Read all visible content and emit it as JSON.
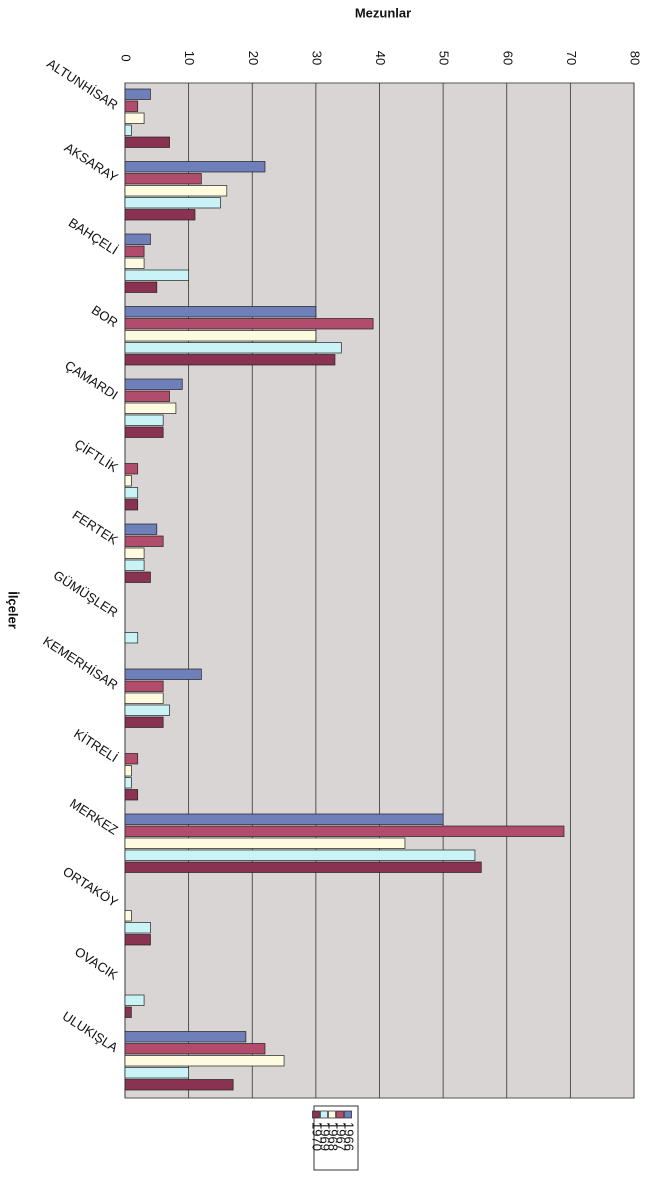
{
  "chart_data": {
    "type": "bar",
    "orientation": "horizontal",
    "title": "Mezunlar",
    "y_label": "İlçeler",
    "categories": [
      "ALTUNHİSAR",
      "AKSARAY",
      "BAHÇELİ",
      "BOR",
      "ÇAMARDI",
      "ÇİFTLİK",
      "FERTEK",
      "GÜMÜŞLER",
      "KEMERHİSAR",
      "KİTRELİ",
      "MERKEZ",
      "ORTAKÖY",
      "OVACIK",
      "ULUKIŞLA"
    ],
    "series": [
      {
        "name": "1966",
        "color": "#6f7fb9",
        "values": [
          4,
          22,
          4,
          30,
          9,
          0,
          5,
          0,
          12,
          0,
          50,
          0,
          0,
          19
        ]
      },
      {
        "name": "1967",
        "color": "#b24c6c",
        "values": [
          2,
          12,
          3,
          39,
          7,
          2,
          6,
          0,
          6,
          2,
          69,
          0,
          0,
          22
        ]
      },
      {
        "name": "1968",
        "color": "#fffbe0",
        "values": [
          3,
          16,
          3,
          30,
          8,
          1,
          3,
          0,
          6,
          1,
          44,
          1,
          0,
          25
        ]
      },
      {
        "name": "1969",
        "color": "#c9f3f6",
        "values": [
          1,
          15,
          10,
          34,
          6,
          2,
          3,
          2,
          7,
          1,
          55,
          4,
          3,
          10
        ]
      },
      {
        "name": "1970",
        "color": "#8a3252",
        "values": [
          7,
          11,
          5,
          33,
          6,
          2,
          4,
          0,
          6,
          2,
          56,
          4,
          1,
          17
        ]
      }
    ],
    "xlim": [
      0,
      80
    ],
    "xticks": [
      0,
      10,
      20,
      30,
      40,
      50,
      60,
      70,
      80
    ],
    "grid": true,
    "legend": "bottom"
  }
}
